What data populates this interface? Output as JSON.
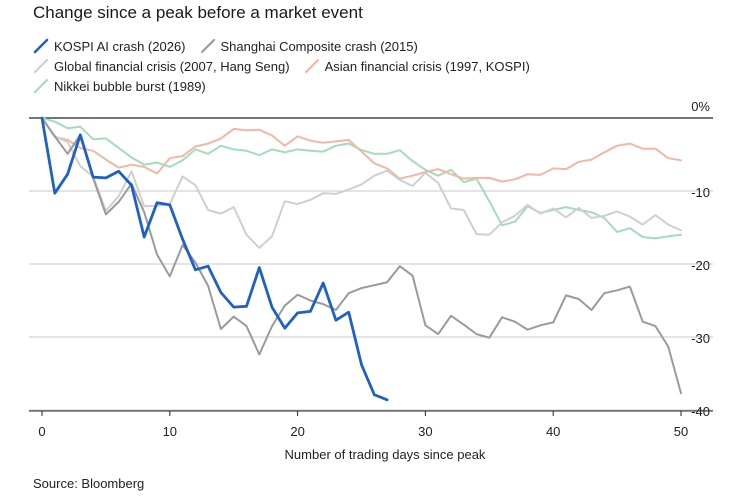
{
  "subtitle": "Change since a peak before a market event",
  "source": "Source: Bloomberg",
  "chart_data": {
    "type": "line",
    "xlabel": "Number of trading days since peak",
    "ylabel": "",
    "xlim": [
      0,
      50
    ],
    "ylim": [
      -40,
      0
    ],
    "x_ticks": [
      0,
      10,
      20,
      30,
      40,
      50
    ],
    "y_ticks": [
      0,
      -10,
      -20,
      -30,
      -40
    ],
    "y_tick_labels": [
      "0%",
      "-10",
      "-20",
      "-30",
      "-40"
    ],
    "grid": "horizontal",
    "legend": "top-left",
    "series": [
      {
        "name": "KOSPI AI crash (2026)",
        "color": "#1f5fc9",
        "x": [
          0,
          1,
          2,
          3,
          4,
          5,
          6,
          7,
          8,
          9,
          10,
          11,
          12,
          13,
          14,
          15,
          16,
          17,
          18,
          19,
          20,
          21,
          22,
          23,
          24,
          25,
          26,
          27
        ],
        "values": [
          0,
          -10.3,
          -7.7,
          -2.3,
          -8.1,
          -8.2,
          -7.3,
          -9.2,
          -16.3,
          -11.6,
          -11.9,
          -16.6,
          -20.8,
          -20.3,
          -23.9,
          -25.9,
          -25.8,
          -20.5,
          -25.9,
          -28.8,
          -26.7,
          -26.5,
          -22.6,
          -27.7,
          -26.6,
          -33.8,
          -37.9,
          -38.6
        ]
      },
      {
        "name": "Shanghai Composite crash (2015)",
        "color": "#9a9a9a",
        "x": [
          0,
          1,
          2,
          3,
          4,
          5,
          6,
          7,
          8,
          9,
          10,
          11,
          12,
          13,
          14,
          15,
          16,
          17,
          18,
          19,
          20,
          21,
          22,
          23,
          24,
          25,
          26,
          27,
          28,
          29,
          30,
          31,
          32,
          33,
          34,
          35,
          36,
          37,
          38,
          39,
          40,
          41,
          42,
          43,
          44,
          45,
          46,
          47,
          48,
          49,
          50
        ],
        "values": [
          0,
          -2.5,
          -4.9,
          -2.3,
          -8.2,
          -13.2,
          -11.5,
          -9.0,
          -12.9,
          -18.7,
          -21.7,
          -17.4,
          -19.8,
          -23.0,
          -28.9,
          -27.2,
          -28.5,
          -32.4,
          -28.5,
          -25.7,
          -24.2,
          -25.0,
          -25.5,
          -26.3,
          -24.0,
          -23.3,
          -22.9,
          -22.5,
          -20.3,
          -21.6,
          -28.4,
          -29.6,
          -27.1,
          -28.3,
          -29.6,
          -30.1,
          -27.3,
          -27.9,
          -29.0,
          -28.4,
          -28.0,
          -24.3,
          -24.8,
          -26.3,
          -24.0,
          -23.6,
          -23.1,
          -27.9,
          -28.5,
          -31.3,
          -37.7
        ]
      },
      {
        "name": "Global financial crisis (2007, Hang Seng)",
        "color": "#cfcfcf",
        "x": [
          0,
          1,
          2,
          3,
          4,
          5,
          6,
          7,
          8,
          9,
          10,
          11,
          12,
          13,
          14,
          15,
          16,
          17,
          18,
          19,
          20,
          21,
          22,
          23,
          24,
          25,
          26,
          27,
          28,
          29,
          30,
          31,
          32,
          33,
          34,
          35,
          36,
          37,
          38,
          39,
          40,
          41,
          42,
          43,
          44,
          45,
          46,
          47,
          48,
          49,
          50
        ],
        "values": [
          0,
          -2.5,
          -3.3,
          -6.6,
          -8.0,
          -12.7,
          -10.7,
          -7.3,
          -12.1,
          -12.0,
          -11.8,
          -8.0,
          -9.2,
          -12.6,
          -13.1,
          -12.2,
          -16.0,
          -17.8,
          -16.2,
          -11.4,
          -11.8,
          -11.2,
          -10.3,
          -10.4,
          -9.8,
          -9.1,
          -7.9,
          -7.2,
          -8.5,
          -9.3,
          -7.5,
          -8.9,
          -12.4,
          -12.6,
          -15.9,
          -16.0,
          -14.3,
          -13.4,
          -11.9,
          -13.1,
          -12.4,
          -13.6,
          -12.3,
          -13.7,
          -13.4,
          -12.8,
          -13.5,
          -14.6,
          -13.3,
          -14.6,
          -15.4
        ]
      },
      {
        "name": "Asian financial crisis (1997, KOSPI)",
        "color": "#f0b8a4",
        "x": [
          0,
          1,
          2,
          3,
          4,
          5,
          6,
          7,
          8,
          9,
          10,
          11,
          12,
          13,
          14,
          15,
          16,
          17,
          18,
          19,
          20,
          21,
          22,
          23,
          24,
          25,
          26,
          27,
          28,
          29,
          30,
          31,
          32,
          33,
          34,
          35,
          36,
          37,
          38,
          39,
          40,
          41,
          42,
          43,
          44,
          45,
          46,
          47,
          48,
          49,
          50
        ],
        "values": [
          0,
          -2.6,
          -3.0,
          -4.1,
          -4.5,
          -5.7,
          -6.8,
          -6.4,
          -6.7,
          -7.6,
          -5.5,
          -5.2,
          -3.9,
          -3.5,
          -2.8,
          -1.5,
          -1.7,
          -1.6,
          -2.4,
          -3.8,
          -2.5,
          -3.1,
          -3.4,
          -3.2,
          -3.0,
          -4.6,
          -6.2,
          -6.9,
          -8.3,
          -7.9,
          -7.4,
          -7.0,
          -7.7,
          -8.3,
          -8.2,
          -8.2,
          -8.7,
          -8.4,
          -7.7,
          -7.8,
          -6.9,
          -7.0,
          -6.0,
          -5.7,
          -4.7,
          -3.8,
          -3.5,
          -4.2,
          -4.2,
          -5.5,
          -5.8
        ]
      },
      {
        "name": "Nikkei bubble burst (1989)",
        "color": "#a2dcba",
        "x": [
          0,
          1,
          2,
          3,
          4,
          5,
          6,
          7,
          8,
          9,
          10,
          11,
          12,
          13,
          14,
          15,
          16,
          17,
          18,
          19,
          20,
          21,
          22,
          23,
          24,
          25,
          26,
          27,
          28,
          29,
          30,
          31,
          32,
          33,
          34,
          35,
          36,
          37,
          38,
          39,
          40,
          41,
          42,
          43,
          44,
          45,
          46,
          47,
          48,
          49,
          50
        ],
        "values": [
          0,
          -0.5,
          -1.4,
          -1.2,
          -2.9,
          -2.8,
          -4.1,
          -5.4,
          -6.4,
          -6.1,
          -6.7,
          -5.8,
          -4.3,
          -4.9,
          -3.8,
          -4.3,
          -4.5,
          -5.1,
          -4.3,
          -4.7,
          -4.3,
          -4.5,
          -4.6,
          -3.8,
          -3.5,
          -4.4,
          -4.9,
          -4.9,
          -4.4,
          -5.9,
          -7.1,
          -7.9,
          -7.1,
          -8.8,
          -8.3,
          -11.4,
          -14.7,
          -14.2,
          -12.1,
          -13.0,
          -12.6,
          -12.2,
          -12.6,
          -12.9,
          -13.7,
          -15.6,
          -15.1,
          -16.3,
          -16.5,
          -16.2,
          -16.0
        ]
      }
    ]
  }
}
